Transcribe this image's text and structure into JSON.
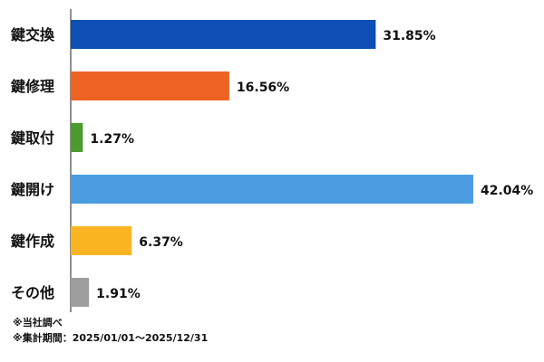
{
  "chart_data": {
    "type": "bar",
    "orientation": "horizontal",
    "categories": [
      "鍵交換",
      "鍵修理",
      "鍵取付",
      "鍵開け",
      "鍵作成",
      "その他"
    ],
    "values": [
      31.85,
      16.56,
      1.27,
      42.04,
      6.37,
      1.91
    ],
    "data_labels": [
      "31.85%",
      "16.56%",
      "1.27%",
      "42.04%",
      "6.37%",
      "1.91%"
    ],
    "colors": [
      "#0d4fb5",
      "#ef6322",
      "#4a9c2e",
      "#4a9de0",
      "#fbb523",
      "#9e9e9e"
    ],
    "xlim": [
      0,
      42.04
    ],
    "grid": false,
    "legend": "none"
  },
  "notes": {
    "source": "※当社調べ",
    "period": "※集計期間：2025/01/01〜2025/12/31"
  }
}
